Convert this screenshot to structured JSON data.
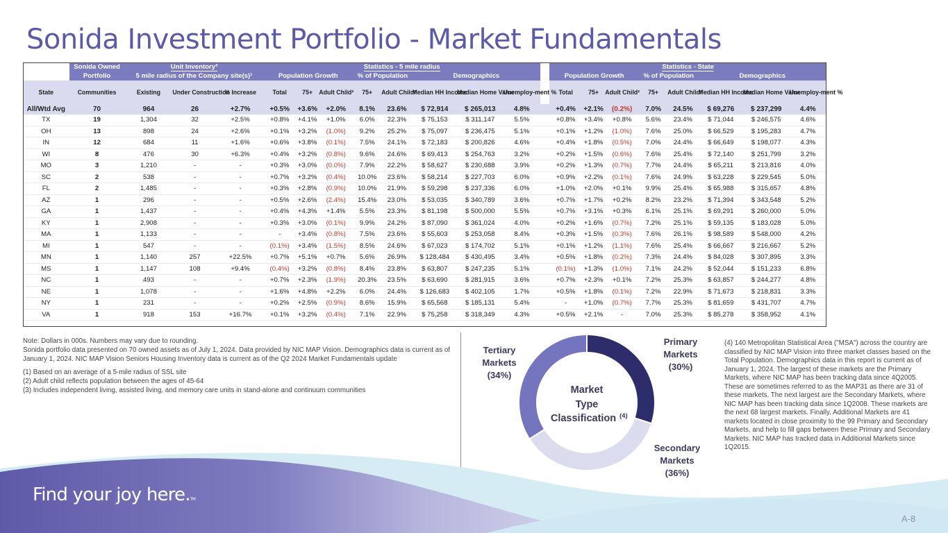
{
  "title": "Sonida Investment Portfolio - Market Fundamentals",
  "table": {
    "group_headers": {
      "sonida_owned": "Sonida Owned",
      "unit_inventory": "Unit Inventory³",
      "stats_5mile": "Statistics - 5 mile radius",
      "stats_state": "Statistics - State"
    },
    "sub_headers": {
      "portfolio": "Portfolio",
      "radius": "5 mile radius of the Company site(s)¹",
      "pop_growth": "Population Growth",
      "pct_pop": "% of Population",
      "demographics": "Demographics",
      "pop_growth_state": "Population Growth",
      "pct_pop_state": "% of Population",
      "demographics_state": "Demographics"
    },
    "columns": [
      "State",
      "Communities",
      "Existing",
      "Under Construction",
      "% Increase",
      "Total",
      "75+",
      "Adult Child²",
      "75+",
      "Adult Child²",
      "Median HH Income",
      "Median Home Value",
      "Unemploy-ment %",
      "Total",
      "75+",
      "Adult Child²",
      "75+",
      "Adult Child²",
      "Median HH Income",
      "Median Home Value",
      "Unemploy-ment %"
    ],
    "rows": [
      [
        "All/Wtd Avg",
        "70",
        "964",
        "26",
        "+2.7%",
        "+0.5%",
        "+3.6%",
        "+2.0%",
        "8.1%",
        "23.6%",
        "$ 72,914",
        "$ 265,013",
        "4.8%",
        "+0.4%",
        "+2.1%",
        "(0.2%)",
        "7.0%",
        "24.5%",
        "$ 69,276",
        "$ 237,299",
        "4.4%"
      ],
      [
        "TX",
        "19",
        "1,304",
        "32",
        "+2.5%",
        "+0.8%",
        "+4.1%",
        "+1.0%",
        "6.0%",
        "22.3%",
        "$ 75,153",
        "$ 311,147",
        "5.5%",
        "+0.8%",
        "+3.4%",
        "+0.8%",
        "5.6%",
        "23.4%",
        "$ 71,044",
        "$ 246,575",
        "4.6%"
      ],
      [
        "OH",
        "13",
        "898",
        "24",
        "+2.6%",
        "+0.1%",
        "+3.2%",
        "(1.0%)",
        "9.2%",
        "25.2%",
        "$ 75,097",
        "$ 236,475",
        "5.1%",
        "+0.1%",
        "+1.2%",
        "(1.0%)",
        "7.6%",
        "25.0%",
        "$ 66,529",
        "$ 195,283",
        "4.7%"
      ],
      [
        "IN",
        "12",
        "684",
        "11",
        "+1.6%",
        "+0.6%",
        "+3.8%",
        "(0.1%)",
        "7.5%",
        "24.1%",
        "$ 72,183",
        "$ 200,826",
        "4.6%",
        "+0.4%",
        "+1.8%",
        "(0.5%)",
        "7.0%",
        "24.4%",
        "$ 66,649",
        "$ 198,077",
        "4.3%"
      ],
      [
        "WI",
        "8",
        "476",
        "30",
        "+6.3%",
        "+0.4%",
        "+3.2%",
        "(0.8%)",
        "9.6%",
        "24.6%",
        "$ 69,413",
        "$ 254,763",
        "3.2%",
        "+0.2%",
        "+1.5%",
        "(0.6%)",
        "7.6%",
        "25.4%",
        "$ 72,140",
        "$ 251,799",
        "3.2%"
      ],
      [
        "MO",
        "3",
        "1,210",
        "-",
        "-",
        "+0.3%",
        "+3.0%",
        "(0.0%)",
        "7.9%",
        "22.2%",
        "$ 58,627",
        "$ 230,688",
        "3.9%",
        "+0.2%",
        "+1.3%",
        "(0.7%)",
        "7.7%",
        "24.4%",
        "$ 65,211",
        "$ 213,816",
        "4.0%"
      ],
      [
        "SC",
        "2",
        "538",
        "-",
        "-",
        "+0.7%",
        "+3.2%",
        "(0.4%)",
        "10.0%",
        "23.6%",
        "$ 58,214",
        "$ 227,703",
        "6.0%",
        "+0.9%",
        "+2.2%",
        "(0.1%)",
        "7.6%",
        "24.9%",
        "$ 63,228",
        "$ 229,545",
        "5.0%"
      ],
      [
        "FL",
        "2",
        "1,485",
        "-",
        "-",
        "+0.3%",
        "+2.8%",
        "(0.9%)",
        "10.0%",
        "21.9%",
        "$ 59,298",
        "$ 237,336",
        "6.0%",
        "+1.0%",
        "+2.0%",
        "+0.1%",
        "9.9%",
        "25.4%",
        "$ 65,988",
        "$ 315,657",
        "4.8%"
      ],
      [
        "AZ",
        "1",
        "296",
        "-",
        "-",
        "+0.5%",
        "+2.6%",
        "(2.4%)",
        "15.4%",
        "23.0%",
        "$ 53,035",
        "$ 340,789",
        "3.6%",
        "+0.7%",
        "+1.7%",
        "+0.2%",
        "8.2%",
        "23.2%",
        "$ 71,394",
        "$ 343,548",
        "5.2%"
      ],
      [
        "GA",
        "1",
        "1,437",
        "-",
        "-",
        "+0.4%",
        "+4.3%",
        "+1.4%",
        "5.5%",
        "23.3%",
        "$ 81,198",
        "$ 500,000",
        "5.5%",
        "+0.7%",
        "+3.1%",
        "+0.3%",
        "6.1%",
        "25.1%",
        "$ 69,291",
        "$ 260,000",
        "5.0%"
      ],
      [
        "KY",
        "1",
        "2,908",
        "-",
        "-",
        "+0.3%",
        "+3.0%",
        "(0.1%)",
        "9.9%",
        "24.2%",
        "$ 87,090",
        "$ 361,024",
        "4.0%",
        "+0.2%",
        "+1.6%",
        "(0.7%)",
        "7.2%",
        "25.1%",
        "$ 59,135",
        "$ 183,028",
        "5.0%"
      ],
      [
        "MA",
        "1",
        "1,133",
        "-",
        "-",
        "-",
        "+3.4%",
        "(0.8%)",
        "7.5%",
        "23.6%",
        "$ 55,603",
        "$ 253,058",
        "8.4%",
        "+0.3%",
        "+1.5%",
        "(0.3%)",
        "7.6%",
        "26.1%",
        "$ 98,589",
        "$ 548,000",
        "4.2%"
      ],
      [
        "MI",
        "1",
        "547",
        "-",
        "-",
        "(0.1%)",
        "+3.4%",
        "(1.5%)",
        "8.5%",
        "24.6%",
        "$ 67,023",
        "$ 174,702",
        "5.1%",
        "+0.1%",
        "+1.2%",
        "(1.1%)",
        "7.6%",
        "25.4%",
        "$ 66,667",
        "$ 216,667",
        "5.2%"
      ],
      [
        "MN",
        "1",
        "1,140",
        "257",
        "+22.5%",
        "+0.7%",
        "+5.1%",
        "+0.7%",
        "5.6%",
        "26.9%",
        "$ 128,484",
        "$ 430,495",
        "3.4%",
        "+0.5%",
        "+1.8%",
        "(0.2%)",
        "7.3%",
        "24.4%",
        "$ 84,028",
        "$ 307,895",
        "3.3%"
      ],
      [
        "MS",
        "1",
        "1,147",
        "108",
        "+9.4%",
        "(0.4%)",
        "+3.2%",
        "(0.8%)",
        "8.4%",
        "23.8%",
        "$ 63,807",
        "$ 247,235",
        "5.1%",
        "(0.1%)",
        "+1.3%",
        "(1.0%)",
        "7.1%",
        "24.2%",
        "$ 52,044",
        "$ 151,233",
        "6.8%"
      ],
      [
        "NC",
        "1",
        "493",
        "-",
        "-",
        "+0.7%",
        "+2.3%",
        "(1.9%)",
        "20.3%",
        "23.5%",
        "$ 63,690",
        "$ 281,915",
        "3.6%",
        "+0.7%",
        "+2.3%",
        "+0.1%",
        "7.2%",
        "25.3%",
        "$ 63,857",
        "$ 244,277",
        "4.8%"
      ],
      [
        "NE",
        "1",
        "1,078",
        "-",
        "-",
        "+1.6%",
        "+4.8%",
        "+2.2%",
        "6.0%",
        "24.4%",
        "$ 126,683",
        "$ 402,105",
        "1.7%",
        "+0.5%",
        "+1.8%",
        "(0.1%)",
        "7.2%",
        "22.9%",
        "$ 71,673",
        "$ 218,831",
        "3.3%"
      ],
      [
        "NY",
        "1",
        "231",
        "-",
        "-",
        "+0.2%",
        "+2.5%",
        "(0.9%)",
        "8.6%",
        "15.9%",
        "$ 65,568",
        "$ 185,131",
        "5.4%",
        "-",
        "+1.0%",
        "(0.7%)",
        "7.7%",
        "25.3%",
        "$ 81,659",
        "$ 431,707",
        "4.7%"
      ],
      [
        "VA",
        "1",
        "918",
        "153",
        "+16.7%",
        "+0.1%",
        "+3.2%",
        "(0.4%)",
        "7.1%",
        "22.9%",
        "$ 75,258",
        "$ 318,349",
        "4.3%",
        "+0.5%",
        "+2.1%",
        "-",
        "7.0%",
        "25.3%",
        "$ 85,278",
        "$ 358,952",
        "4.1%"
      ]
    ]
  },
  "notes": {
    "main": "Note: Dollars in 000s. Numbers may vary due to rounding.",
    "line2": "Sonida portfolio data presented on 70  owned assets as of July 1, 2024. Data provided by NIC MAP Vision. Demographics data is current as of January 1, 2024.  NIC MAP Vision Seniors Housing Inventory data is current as of the Q2 2024 Market Fundamentals update",
    "fn1": "(1) Based on an average of a 5-mile radius of SSL site",
    "fn2": "(2) Adult child reflects population between the ages of 45-64",
    "fn3": "(3) Includes independent living, assisted living, and memory care units in stand-alone and continuum communities"
  },
  "donut": {
    "center_line1": "Market",
    "center_line2": "Type",
    "center_line3": "Classification",
    "center_sup": "(4)",
    "segments": [
      {
        "label": "Primary Markets",
        "pct_label": "(30%)",
        "value": 30,
        "color": "#2e2d6b"
      },
      {
        "label": "Secondary Markets",
        "pct_label": "(36%)",
        "value": 36,
        "color": "#dcdcef"
      },
      {
        "label": "Tertiary Markets",
        "pct_label": "(34%)",
        "value": 34,
        "color": "#7474bf"
      }
    ]
  },
  "right_note": "(4) 140 Metropolitan Statistical Area (\"MSA\") across the country are classified by NIC MAP Vision into three market classes based on the Total Population. Demographics data in this report is current as of January 1, 2024. The largest of these markets are the Primary Markets, where NIC MAP has been tracking data since 4Q2005.  These are sometimes referred to as the MAP31 as there are 31 of these markets.  The next largest are the Secondary Markets, where NIC MAP has been tracking data since 1Q2008.  These markets are the next 68 largest markets.  Finally, Additional Markets are 41 markets located in close proximity to the 99 Primary and Secondary Markets, and help to fill gaps between these Primary and Secondary Markets.  NIC MAP has tracked data in Additional Markets since 1Q2015.",
  "footer": {
    "slogan": "Find your joy here.",
    "tm": "TM",
    "page_number": "A-8"
  }
}
